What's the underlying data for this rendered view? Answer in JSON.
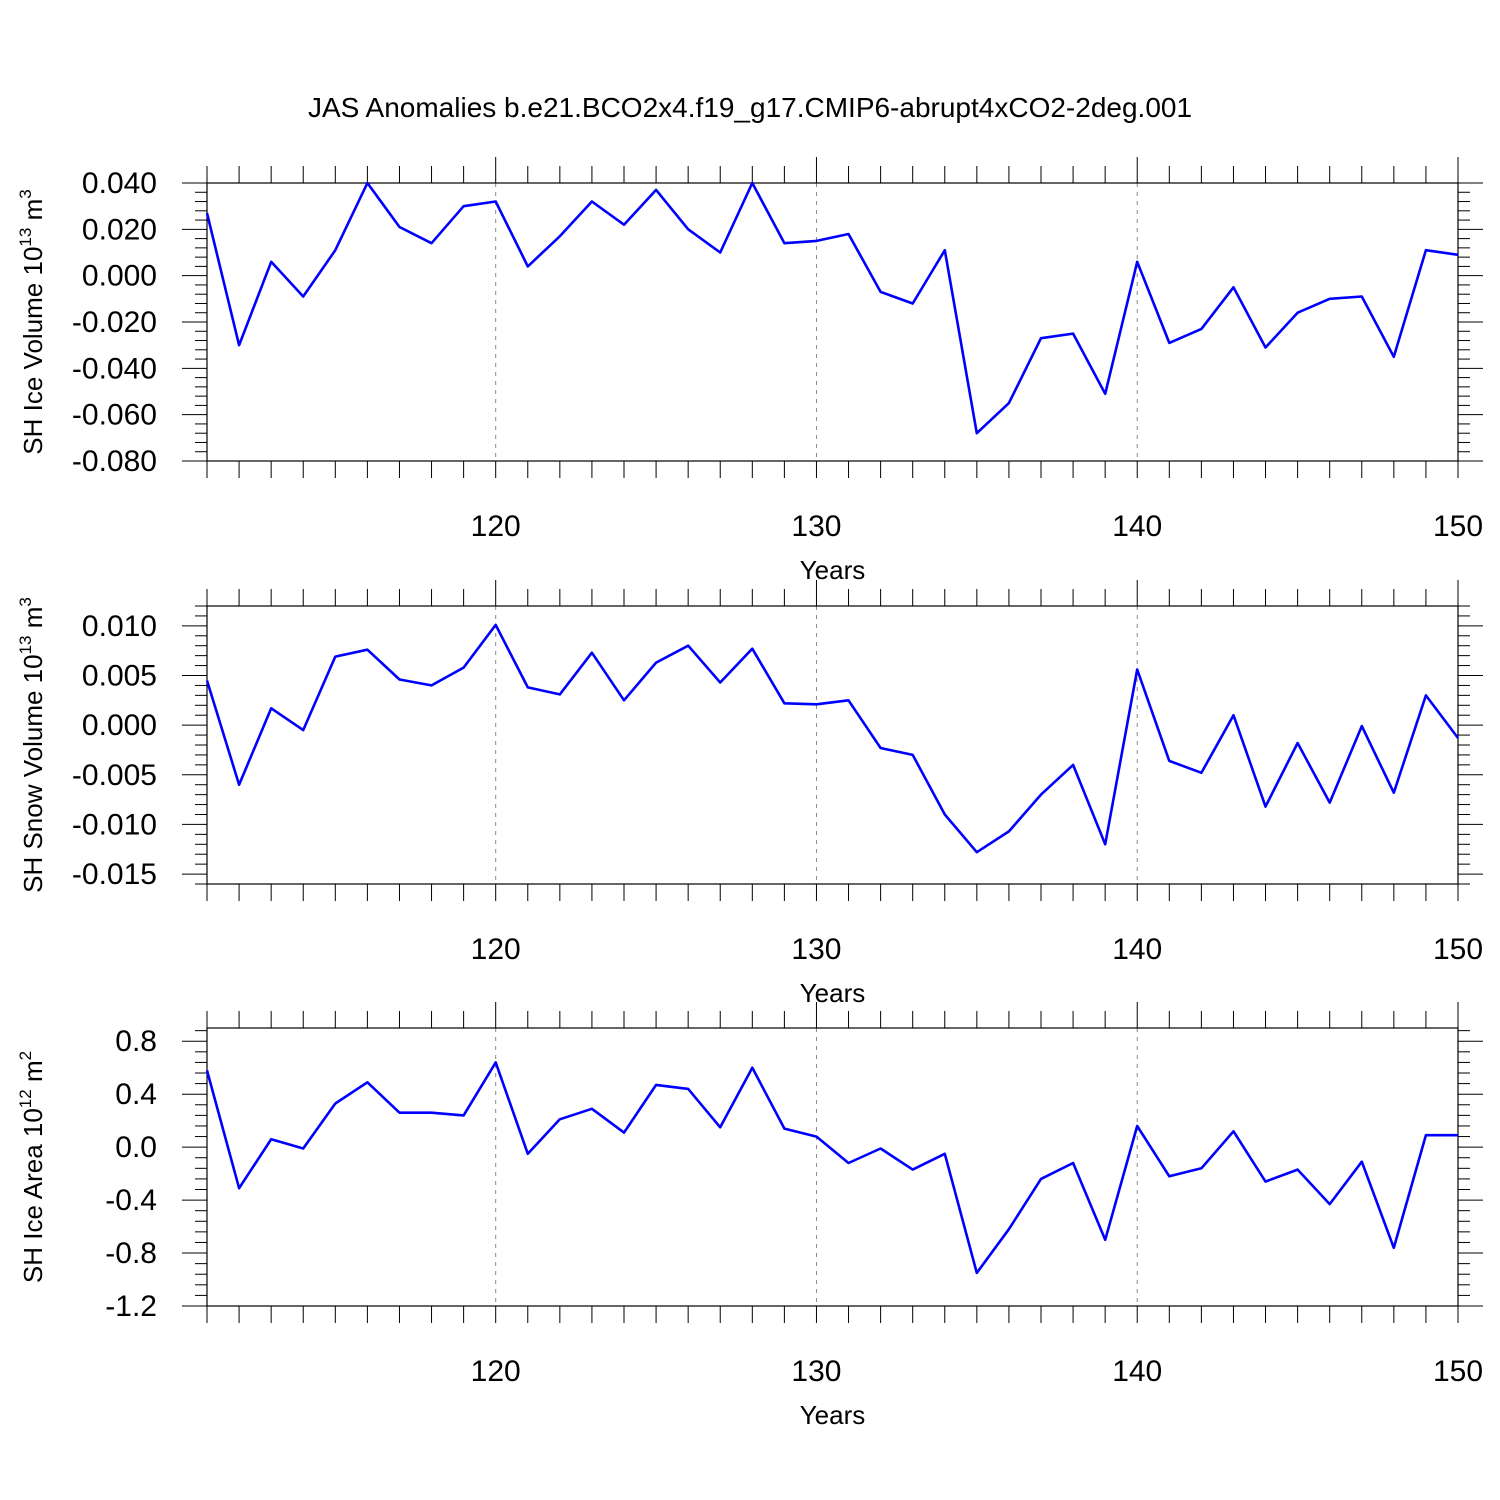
{
  "title": "JAS Anomalies b.e21.BCO2x4.f19_g17.CMIP6-abrupt4xCO2-2deg.001",
  "colors": {
    "line": "#0000ff",
    "axis": "#000000",
    "grid": "#888888"
  },
  "chart_data": [
    {
      "type": "line",
      "ylabel": "SH Ice Volume 10",
      "ylabel_sup": "13",
      "ylabel_unit": " m",
      "ylabel_unit_sup": "3",
      "xlabel": "Years",
      "xlim": [
        111,
        150
      ],
      "ylim": [
        -0.08,
        0.04
      ],
      "yticks": [
        0.04,
        0.02,
        0.0,
        -0.02,
        -0.04,
        -0.06,
        -0.08
      ],
      "ytick_labels": [
        "0.040",
        "0.020",
        "0.000",
        "-0.020",
        "-0.040",
        "-0.060",
        "-0.080"
      ],
      "xticks": [
        120,
        130,
        140,
        150
      ],
      "xtick_labels": [
        "120",
        "130",
        "140",
        "150"
      ],
      "grid": "vertical dashed at major x ticks",
      "series": [
        {
          "x": [
            111,
            112,
            113,
            114,
            115,
            116,
            117,
            118,
            119,
            120,
            121,
            122,
            123,
            124,
            125,
            126,
            127,
            128,
            129,
            130,
            131,
            132,
            133,
            134,
            135,
            136,
            137,
            138,
            139,
            140,
            141,
            142,
            143,
            144,
            145,
            146,
            147,
            148,
            149,
            150
          ],
          "values": [
            0.027,
            -0.03,
            0.006,
            -0.009,
            0.011,
            0.04,
            0.021,
            0.014,
            0.03,
            0.032,
            0.004,
            0.017,
            0.032,
            0.022,
            0.037,
            0.02,
            0.01,
            0.04,
            0.014,
            0.015,
            0.018,
            -0.007,
            -0.012,
            0.011,
            -0.068,
            -0.055,
            -0.027,
            -0.025,
            -0.051,
            0.006,
            -0.029,
            -0.023,
            -0.005,
            -0.031,
            -0.016,
            -0.01,
            -0.009,
            -0.035,
            0.011,
            0.009
          ]
        }
      ]
    },
    {
      "type": "line",
      "ylabel": "SH Snow Volume 10",
      "ylabel_sup": "13",
      "ylabel_unit": " m",
      "ylabel_unit_sup": "3",
      "xlabel": "Years",
      "xlim": [
        111,
        150
      ],
      "ylim": [
        -0.016,
        0.012
      ],
      "yticks": [
        0.01,
        0.005,
        0.0,
        -0.005,
        -0.01,
        -0.015
      ],
      "ytick_labels": [
        "0.010",
        "0.005",
        "0.000",
        "-0.005",
        "-0.010",
        "-0.015"
      ],
      "xticks": [
        120,
        130,
        140,
        150
      ],
      "xtick_labels": [
        "120",
        "130",
        "140",
        "150"
      ],
      "grid": "vertical dashed at major x ticks",
      "series": [
        {
          "x": [
            111,
            112,
            113,
            114,
            115,
            116,
            117,
            118,
            119,
            120,
            121,
            122,
            123,
            124,
            125,
            126,
            127,
            128,
            129,
            130,
            131,
            132,
            133,
            134,
            135,
            136,
            137,
            138,
            139,
            140,
            141,
            142,
            143,
            144,
            145,
            146,
            147,
            148,
            149,
            150
          ],
          "values": [
            0.0045,
            -0.006,
            0.0017,
            -0.0005,
            0.0069,
            0.0076,
            0.0046,
            0.004,
            0.0058,
            0.0101,
            0.0038,
            0.0031,
            0.0073,
            0.0025,
            0.0063,
            0.008,
            0.0043,
            0.0077,
            0.0022,
            0.0021,
            0.0025,
            -0.0023,
            -0.003,
            -0.009,
            -0.0128,
            -0.0107,
            -0.007,
            -0.004,
            -0.012,
            0.0056,
            -0.0036,
            -0.0048,
            0.001,
            -0.0082,
            -0.0018,
            -0.0078,
            -0.0001,
            -0.0068,
            0.003,
            -0.0013
          ]
        }
      ]
    },
    {
      "type": "line",
      "ylabel": "SH Ice Area 10",
      "ylabel_sup": "12",
      "ylabel_unit": " m",
      "ylabel_unit_sup": "2",
      "xlabel": "Years",
      "xlim": [
        111,
        150
      ],
      "ylim": [
        -1.2,
        0.9
      ],
      "yticks": [
        0.8,
        0.4,
        0.0,
        -0.4,
        -0.8,
        -1.2
      ],
      "ytick_labels": [
        "0.8",
        "0.4",
        "0.0",
        "-0.4",
        "-0.8",
        "-1.2"
      ],
      "xticks": [
        120,
        130,
        140,
        150
      ],
      "xtick_labels": [
        "120",
        "130",
        "140",
        "150"
      ],
      "grid": "vertical dashed at major x ticks",
      "series": [
        {
          "x": [
            111,
            112,
            113,
            114,
            115,
            116,
            117,
            118,
            119,
            120,
            121,
            122,
            123,
            124,
            125,
            126,
            127,
            128,
            129,
            130,
            131,
            132,
            133,
            134,
            135,
            136,
            137,
            138,
            139,
            140,
            141,
            142,
            143,
            144,
            145,
            146,
            147,
            148,
            149,
            150
          ],
          "values": [
            0.58,
            -0.31,
            0.06,
            -0.01,
            0.33,
            0.49,
            0.26,
            0.26,
            0.24,
            0.64,
            -0.05,
            0.21,
            0.29,
            0.11,
            0.47,
            0.44,
            0.15,
            0.6,
            0.14,
            0.08,
            -0.12,
            -0.01,
            -0.17,
            -0.05,
            -0.95,
            -0.62,
            -0.24,
            -0.12,
            -0.7,
            0.16,
            -0.22,
            -0.16,
            0.12,
            -0.26,
            -0.17,
            -0.43,
            -0.11,
            -0.76,
            0.09,
            0.09
          ]
        }
      ]
    }
  ]
}
